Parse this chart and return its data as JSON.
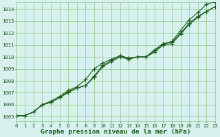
{
  "title": "Graphe pression niveau de la mer (hPa)",
  "bg_color": "#d8f0ee",
  "plot_bg_color": "#d8f0ee",
  "grid_color": "#88cc88",
  "line_color": "#1a5c1a",
  "xlim": [
    0,
    23
  ],
  "ylim": [
    1004.6,
    1014.6
  ],
  "yticks": [
    1005,
    1006,
    1007,
    1008,
    1009,
    1010,
    1011,
    1012,
    1013,
    1014
  ],
  "xticks": [
    0,
    1,
    2,
    3,
    4,
    5,
    6,
    7,
    8,
    9,
    10,
    11,
    12,
    13,
    14,
    15,
    16,
    17,
    18,
    19,
    20,
    21,
    22,
    23
  ],
  "series1": [
    1005.1,
    1005.1,
    1005.4,
    1006.0,
    1006.2,
    1006.6,
    1007.0,
    1007.4,
    1007.6,
    1008.4,
    1009.3,
    1009.7,
    1010.1,
    1009.9,
    1010.0,
    1010.0,
    1010.5,
    1011.1,
    1011.2,
    1012.0,
    1012.8,
    1013.4,
    1013.8,
    1014.2
  ],
  "series2": [
    1005.1,
    1005.1,
    1005.4,
    1006.0,
    1006.2,
    1006.6,
    1007.1,
    1007.4,
    1007.6,
    1008.3,
    1009.2,
    1009.6,
    1010.0,
    1009.8,
    1010.0,
    1010.0,
    1010.4,
    1011.0,
    1011.1,
    1011.9,
    1012.7,
    1013.3,
    1013.8,
    1014.2
  ],
  "series3": [
    1005.1,
    1005.1,
    1005.4,
    1006.0,
    1006.3,
    1006.7,
    1007.2,
    1007.5,
    1008.1,
    1009.0,
    1009.5,
    1009.8,
    1010.1,
    1009.9,
    1010.0,
    1010.0,
    1010.6,
    1011.1,
    1011.3,
    1012.2,
    1013.1,
    1013.7,
    1014.4,
    1014.6
  ],
  "title_fontsize": 6.8,
  "tick_fontsize": 5.2
}
